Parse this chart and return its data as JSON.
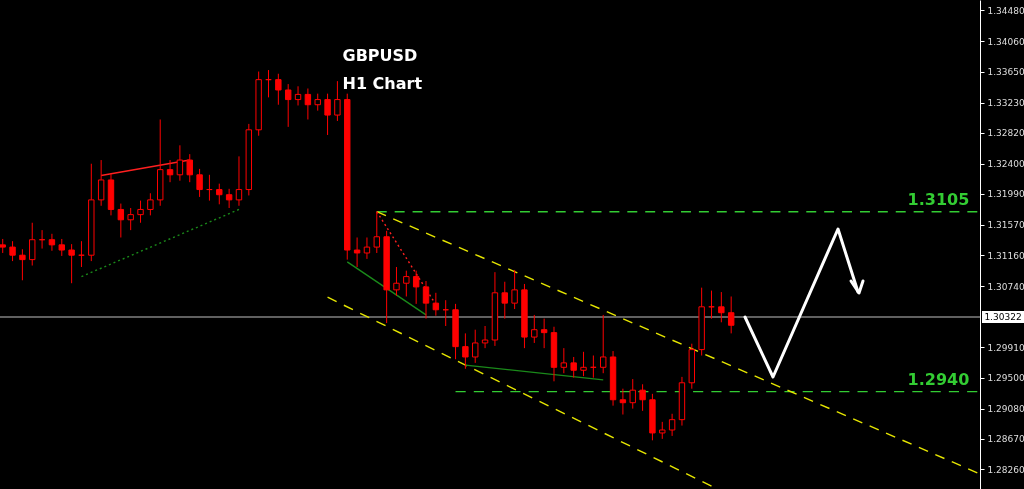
{
  "chart_data": {
    "type": "candlestick",
    "title": "GBPUSD",
    "subtitle": "H1 Chart",
    "color": "#ff0000",
    "categories": [
      null,
      null,
      null,
      null,
      null,
      null,
      null,
      null,
      null,
      null,
      null,
      null,
      null,
      null,
      null,
      null,
      null,
      null,
      null,
      null,
      null,
      null,
      null,
      null,
      null,
      null,
      null,
      null,
      null,
      null,
      null,
      null,
      null,
      null,
      null,
      null,
      null,
      null,
      null,
      null,
      null,
      null,
      null,
      null,
      null,
      null,
      null,
      null,
      null,
      null,
      null,
      null,
      null,
      null,
      null,
      null,
      null,
      null,
      null,
      null,
      null,
      null,
      null,
      null,
      null,
      null,
      null,
      null,
      null,
      null,
      null,
      null,
      null,
      null,
      null,
      null,
      null,
      null,
      null,
      null,
      null,
      null,
      null,
      null,
      null,
      null,
      null,
      null,
      null,
      null,
      null,
      null,
      null,
      null,
      null,
      null,
      null,
      null,
      null,
      null
    ],
    "ohlc": [
      [
        1.313,
        1.3138,
        1.3119,
        1.3127
      ],
      [
        1.3127,
        1.3135,
        1.3108,
        1.3116
      ],
      [
        1.3116,
        1.3124,
        1.3082,
        1.311
      ],
      [
        1.311,
        1.316,
        1.3102,
        1.3137
      ],
      [
        1.3137,
        1.315,
        1.3125,
        1.3137
      ],
      [
        1.3137,
        1.3145,
        1.3122,
        1.313
      ],
      [
        1.313,
        1.3138,
        1.3115,
        1.3123
      ],
      [
        1.3123,
        1.3131,
        1.3078,
        1.3116
      ],
      [
        1.3116,
        1.3135,
        1.31,
        1.3116
      ],
      [
        1.3116,
        1.324,
        1.3108,
        1.3191
      ],
      [
        1.3191,
        1.3245,
        1.3183,
        1.3218
      ],
      [
        1.3218,
        1.3226,
        1.317,
        1.3178
      ],
      [
        1.3178,
        1.3186,
        1.314,
        1.3164
      ],
      [
        1.3164,
        1.318,
        1.315,
        1.3171
      ],
      [
        1.3171,
        1.319,
        1.316,
        1.3178
      ],
      [
        1.3178,
        1.32,
        1.317,
        1.3191
      ],
      [
        1.3191,
        1.33,
        1.3183,
        1.3232
      ],
      [
        1.3232,
        1.3245,
        1.3215,
        1.3225
      ],
      [
        1.3225,
        1.3265,
        1.3217,
        1.3245
      ],
      [
        1.3245,
        1.3253,
        1.3215,
        1.3225
      ],
      [
        1.3225,
        1.3233,
        1.3195,
        1.3205
      ],
      [
        1.3205,
        1.3225,
        1.319,
        1.3205
      ],
      [
        1.3205,
        1.3213,
        1.3185,
        1.3198
      ],
      [
        1.3198,
        1.3206,
        1.318,
        1.3191
      ],
      [
        1.3191,
        1.325,
        1.3183,
        1.3205
      ],
      [
        1.3205,
        1.3294,
        1.3197,
        1.3286
      ],
      [
        1.3286,
        1.3365,
        1.3278,
        1.3354
      ],
      [
        1.3354,
        1.3367,
        1.333,
        1.3354
      ],
      [
        1.3354,
        1.3362,
        1.332,
        1.334
      ],
      [
        1.334,
        1.3348,
        1.329,
        1.3327
      ],
      [
        1.3327,
        1.3345,
        1.3319,
        1.3334
      ],
      [
        1.3334,
        1.3342,
        1.33,
        1.332
      ],
      [
        1.332,
        1.3335,
        1.3312,
        1.3327
      ],
      [
        1.3327,
        1.3335,
        1.3279,
        1.3306
      ],
      [
        1.3306,
        1.3352,
        1.3298,
        1.3327
      ],
      [
        1.3327,
        1.3335,
        1.311,
        1.3123
      ],
      [
        1.3123,
        1.314,
        1.31,
        1.3119
      ],
      [
        1.3119,
        1.314,
        1.3111,
        1.3127
      ],
      [
        1.3127,
        1.3175,
        1.3119,
        1.3141
      ],
      [
        1.3141,
        1.3149,
        1.3024,
        1.3069
      ],
      [
        1.3069,
        1.31,
        1.3061,
        1.3078
      ],
      [
        1.3078,
        1.3095,
        1.306,
        1.3087
      ],
      [
        1.3087,
        1.3095,
        1.305,
        1.3073
      ],
      [
        1.3073,
        1.3081,
        1.303,
        1.3051
      ],
      [
        1.3051,
        1.3065,
        1.3034,
        1.3042
      ],
      [
        1.3042,
        1.3055,
        1.302,
        1.3042
      ],
      [
        1.3042,
        1.305,
        1.2975,
        1.2992
      ],
      [
        1.2992,
        1.301,
        1.2962,
        1.2978
      ],
      [
        1.2978,
        1.3015,
        1.297,
        1.2997
      ],
      [
        1.2997,
        1.302,
        1.299,
        1.3001
      ],
      [
        1.3001,
        1.3093,
        1.2993,
        1.3065
      ],
      [
        1.3065,
        1.308,
        1.303,
        1.3051
      ],
      [
        1.3051,
        1.3096,
        1.3043,
        1.3069
      ],
      [
        1.3069,
        1.3077,
        1.299,
        1.3005
      ],
      [
        1.3005,
        1.3035,
        1.2997,
        1.3015
      ],
      [
        1.3015,
        1.303,
        1.299,
        1.3011
      ],
      [
        1.3011,
        1.3019,
        1.2945,
        1.2964
      ],
      [
        1.2964,
        1.299,
        1.2956,
        1.297
      ],
      [
        1.297,
        1.2978,
        1.295,
        1.296
      ],
      [
        1.296,
        1.2985,
        1.2952,
        1.2964
      ],
      [
        1.2964,
        1.298,
        1.295,
        1.2964
      ],
      [
        1.2964,
        1.3035,
        1.2956,
        1.2978
      ],
      [
        1.2978,
        1.2986,
        1.2912,
        1.292
      ],
      [
        1.292,
        1.2935,
        1.29,
        1.2916
      ],
      [
        1.2916,
        1.2948,
        1.2908,
        1.2933
      ],
      [
        1.2933,
        1.2941,
        1.2905,
        1.292
      ],
      [
        1.292,
        1.2928,
        1.2865,
        1.2875
      ],
      [
        1.2875,
        1.289,
        1.2867,
        1.2879
      ],
      [
        1.2879,
        1.2901,
        1.2871,
        1.2893
      ],
      [
        1.2893,
        1.2951,
        1.2885,
        1.2943
      ],
      [
        1.2943,
        1.2996,
        1.2935,
        1.2988
      ],
      [
        1.2988,
        1.3072,
        1.298,
        1.3046
      ],
      [
        1.3046,
        1.3068,
        1.303,
        1.3046
      ],
      [
        1.3046,
        1.3066,
        1.3025,
        1.3038
      ],
      [
        1.3038,
        1.306,
        1.301,
        1.3021
      ],
      null,
      null,
      null,
      null,
      null,
      null,
      null,
      null,
      null,
      null,
      null,
      null,
      null,
      null,
      null,
      null,
      null,
      null,
      null,
      null,
      null,
      null,
      null,
      null,
      null
    ],
    "series": [
      {
        "type": "line",
        "name": "1.3105",
        "color": "#33cc33",
        "line_style": "dashed",
        "values": [
          null,
          null,
          null,
          null,
          null,
          null,
          null,
          null,
          null,
          null,
          null,
          null,
          null,
          null,
          null,
          null,
          null,
          null,
          null,
          null,
          null,
          null,
          null,
          null,
          null,
          null,
          null,
          null,
          null,
          null,
          null,
          null,
          null,
          null,
          null,
          null,
          null,
          null,
          1.3175,
          null,
          null,
          null,
          null,
          null,
          null,
          null,
          null,
          null,
          null,
          null,
          null,
          null,
          null,
          null,
          null,
          null,
          null,
          null,
          null,
          null,
          null,
          null,
          null,
          null,
          null,
          null,
          null,
          null,
          null,
          null,
          null,
          null,
          null,
          null,
          null,
          null,
          null,
          null,
          null,
          null,
          null,
          null,
          null,
          null,
          null,
          null,
          null,
          null,
          null,
          null,
          null,
          null,
          null,
          null,
          null,
          null,
          null,
          null,
          null,
          1.3175
        ]
      },
      {
        "type": "line",
        "name": "1.2940",
        "color": "#33cc33",
        "line_style": "dashed",
        "values": [
          null,
          null,
          null,
          null,
          null,
          null,
          null,
          null,
          null,
          null,
          null,
          null,
          null,
          null,
          null,
          null,
          null,
          null,
          null,
          null,
          null,
          null,
          null,
          null,
          null,
          null,
          null,
          null,
          null,
          null,
          null,
          null,
          null,
          null,
          null,
          null,
          null,
          null,
          null,
          null,
          null,
          null,
          null,
          null,
          null,
          null,
          1.2931,
          null,
          null,
          null,
          null,
          null,
          null,
          null,
          null,
          null,
          null,
          null,
          null,
          null,
          null,
          null,
          null,
          null,
          null,
          null,
          null,
          null,
          null,
          null,
          null,
          null,
          null,
          null,
          null,
          null,
          null,
          null,
          null,
          null,
          null,
          null,
          null,
          null,
          null,
          null,
          null,
          null,
          null,
          null,
          null,
          null,
          null,
          null,
          null,
          null,
          null,
          null,
          null,
          1.2931
        ]
      },
      {
        "type": "line",
        "color": "#e6e600",
        "line_style": "dashed",
        "values": [
          null,
          null,
          null,
          null,
          null,
          null,
          null,
          null,
          null,
          null,
          null,
          null,
          null,
          null,
          null,
          null,
          null,
          null,
          null,
          null,
          null,
          null,
          null,
          null,
          null,
          null,
          null,
          null,
          null,
          null,
          null,
          null,
          null,
          null,
          null,
          null,
          null,
          null,
          1.3175,
          null,
          null,
          null,
          null,
          null,
          null,
          null,
          null,
          null,
          null,
          null,
          null,
          null,
          null,
          null,
          null,
          null,
          null,
          null,
          null,
          null,
          null,
          null,
          null,
          null,
          null,
          null,
          null,
          null,
          null,
          null,
          null,
          null,
          null,
          null,
          null,
          null,
          null,
          null,
          null,
          null,
          null,
          null,
          null,
          null,
          null,
          null,
          null,
          null,
          null,
          null,
          null,
          null,
          null,
          null,
          null,
          null,
          null,
          null,
          null,
          1.2821
        ]
      },
      {
        "type": "line",
        "color": "#e6e600",
        "line_style": "dashed",
        "values": [
          null,
          null,
          null,
          null,
          null,
          null,
          null,
          null,
          null,
          null,
          null,
          null,
          null,
          null,
          null,
          null,
          null,
          null,
          null,
          null,
          null,
          null,
          null,
          null,
          null,
          null,
          null,
          null,
          null,
          null,
          null,
          null,
          null,
          1.3059,
          null,
          null,
          null,
          null,
          null,
          null,
          null,
          null,
          null,
          null,
          null,
          null,
          null,
          null,
          null,
          null,
          null,
          null,
          null,
          null,
          null,
          null,
          null,
          null,
          null,
          null,
          null,
          null,
          null,
          null,
          null,
          null,
          null,
          null,
          null,
          null,
          null,
          null,
          1.2803,
          null,
          null,
          null,
          null,
          null,
          null,
          null,
          null,
          null,
          null,
          null,
          null,
          null,
          null,
          null,
          null,
          null,
          null,
          null,
          null,
          null,
          null,
          null,
          null,
          null,
          null,
          null
        ]
      },
      {
        "type": "line",
        "color": "#ff2020",
        "line_style": "solid",
        "values": [
          null,
          null,
          null,
          null,
          null,
          null,
          null,
          null,
          null,
          null,
          1.3224,
          null,
          null,
          null,
          null,
          null,
          null,
          null,
          null,
          1.3245,
          null,
          null,
          null,
          null,
          null,
          null,
          null,
          null,
          null,
          null,
          null,
          null,
          null,
          null,
          null,
          null,
          null,
          null,
          null,
          null,
          null,
          null,
          null,
          null,
          null,
          null,
          null,
          null,
          null,
          null,
          null,
          null,
          null,
          null,
          null,
          null,
          null,
          null,
          null,
          null,
          null,
          null,
          null,
          null,
          null,
          null,
          null,
          null,
          null,
          null,
          null,
          null,
          null,
          null,
          null,
          null,
          null,
          null,
          null,
          null,
          null,
          null,
          null,
          null,
          null,
          null,
          null,
          null,
          null,
          null,
          null,
          null,
          null,
          null,
          null,
          null,
          null,
          null,
          null,
          null
        ]
      },
      {
        "type": "line",
        "color": "#1a8a1a",
        "line_style": "dotted",
        "values": [
          null,
          null,
          null,
          null,
          null,
          null,
          null,
          null,
          1.3087,
          null,
          null,
          null,
          null,
          null,
          null,
          null,
          null,
          null,
          null,
          null,
          null,
          null,
          null,
          null,
          1.3178,
          null,
          null,
          null,
          null,
          null,
          null,
          null,
          null,
          null,
          null,
          null,
          null,
          null,
          null,
          null,
          null,
          null,
          null,
          null,
          null,
          null,
          null,
          null,
          null,
          null,
          null,
          null,
          null,
          null,
          null,
          null,
          null,
          null,
          null,
          null,
          null,
          null,
          null,
          null,
          null,
          null,
          null,
          null,
          null,
          null,
          null,
          null,
          null,
          null,
          null,
          null,
          null,
          null,
          null,
          null,
          null,
          null,
          null,
          null,
          null,
          null,
          null,
          null,
          null,
          null,
          null,
          null,
          null,
          null,
          null,
          null,
          null,
          null,
          null,
          null
        ]
      },
      {
        "type": "line",
        "color": "#1a8a1a",
        "line_style": "solid",
        "values": [
          null,
          null,
          null,
          null,
          null,
          null,
          null,
          null,
          null,
          null,
          null,
          null,
          null,
          null,
          null,
          null,
          null,
          null,
          null,
          null,
          null,
          null,
          null,
          null,
          null,
          null,
          null,
          null,
          null,
          null,
          null,
          null,
          null,
          null,
          null,
          1.3107,
          null,
          null,
          null,
          null,
          null,
          null,
          null,
          1.3035,
          null,
          null,
          null,
          null,
          null,
          null,
          null,
          null,
          null,
          null,
          null,
          null,
          null,
          null,
          null,
          null,
          null,
          null,
          null,
          null,
          null,
          null,
          null,
          null,
          null,
          null,
          null,
          null,
          null,
          null,
          null,
          null,
          null,
          null,
          null,
          null,
          null,
          null,
          null,
          null,
          null,
          null,
          null,
          null,
          null,
          null,
          null,
          null,
          null,
          null,
          null,
          null,
          null,
          null,
          null,
          null
        ]
      },
      {
        "type": "line",
        "color": "#1a8a1a",
        "line_style": "solid",
        "values": [
          null,
          null,
          null,
          null,
          null,
          null,
          null,
          null,
          null,
          null,
          null,
          null,
          null,
          null,
          null,
          null,
          null,
          null,
          null,
          null,
          null,
          null,
          null,
          null,
          null,
          null,
          null,
          null,
          null,
          null,
          null,
          null,
          null,
          null,
          null,
          null,
          null,
          null,
          null,
          null,
          null,
          null,
          null,
          null,
          null,
          null,
          null,
          1.2967,
          null,
          null,
          null,
          null,
          null,
          null,
          null,
          null,
          null,
          null,
          null,
          null,
          null,
          1.2947,
          null,
          null,
          null,
          null,
          null,
          null,
          null,
          null,
          null,
          null,
          null,
          null,
          null,
          null,
          null,
          null,
          null,
          null,
          null,
          null,
          null,
          null,
          null,
          null,
          null,
          null,
          null,
          null,
          null,
          null,
          null,
          null,
          null,
          null,
          null,
          null,
          null,
          null
        ]
      },
      {
        "type": "line",
        "color": "#ff2020",
        "line_style": "dotted",
        "values": [
          null,
          null,
          null,
          null,
          null,
          null,
          null,
          null,
          null,
          null,
          null,
          null,
          null,
          null,
          null,
          null,
          null,
          null,
          null,
          null,
          null,
          null,
          null,
          null,
          null,
          null,
          null,
          null,
          null,
          null,
          null,
          null,
          null,
          null,
          null,
          null,
          null,
          null,
          1.3175,
          null,
          null,
          null,
          null,
          null,
          1.3049,
          null,
          null,
          null,
          null,
          null,
          null,
          null,
          null,
          null,
          null,
          null,
          null,
          null,
          null,
          null,
          null,
          null,
          null,
          null,
          null,
          null,
          null,
          null,
          null,
          null,
          null,
          null,
          null,
          null,
          null,
          null,
          null,
          null,
          null,
          null,
          null,
          null,
          null,
          null,
          null,
          null,
          null,
          null,
          null,
          null,
          null,
          null,
          null,
          null,
          null,
          null,
          null,
          null,
          null,
          null
        ]
      }
    ],
    "ref_lines": [
      {
        "axis": "y",
        "value": 1.30322,
        "label": "1.30322",
        "color": "#c0c0c0"
      }
    ],
    "ylim": [
      1.2799,
      1.3462
    ],
    "yticks": [
      {
        "value": 1.2826,
        "label": "1.28260"
      },
      {
        "value": 1.2867,
        "label": "1.28670"
      },
      {
        "value": 1.2908,
        "label": "1.29080"
      },
      {
        "value": 1.295,
        "label": "1.29500"
      },
      {
        "value": 1.2991,
        "label": "1.29910"
      },
      {
        "value": 1.3074,
        "label": "1.30740"
      },
      {
        "value": 1.3116,
        "label": "1.31160"
      },
      {
        "value": 1.3157,
        "label": "1.31570"
      },
      {
        "value": 1.3199,
        "label": "1.31990"
      },
      {
        "value": 1.324,
        "label": "1.32400"
      },
      {
        "value": 1.3282,
        "label": "1.32820"
      },
      {
        "value": 1.3323,
        "label": "1.33230"
      },
      {
        "value": 1.3365,
        "label": "1.33650"
      },
      {
        "value": 1.3406,
        "label": "1.34060"
      },
      {
        "value": 1.3448,
        "label": "1.34480"
      }
    ],
    "tick_labels": "y"
  }
}
